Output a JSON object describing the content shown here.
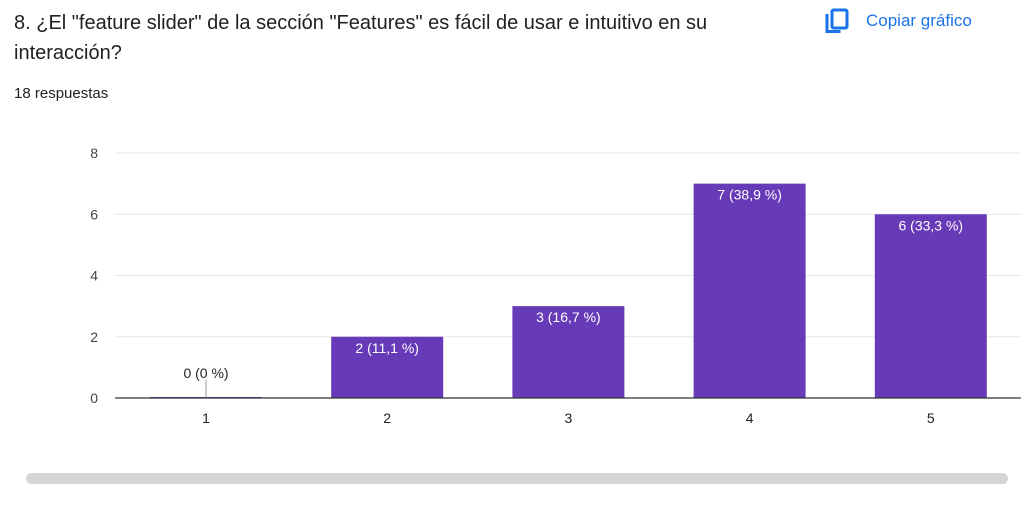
{
  "question": {
    "title": "8. ¿El \"feature slider\" de la sección \"Features\" es fácil de usar e intuitivo en su interacción?",
    "responses": "18 respuestas"
  },
  "toolbar": {
    "copy_label": "Copiar gráfico",
    "copy_icon": "copy-icon"
  },
  "colors": {
    "bar": "#673ab7",
    "accent": "#1a73e8",
    "grid": "#e6e6e6",
    "axis": "#333333"
  },
  "chart_data": {
    "type": "bar",
    "categories": [
      "1",
      "2",
      "3",
      "4",
      "5"
    ],
    "values": [
      0,
      2,
      3,
      7,
      6
    ],
    "data_labels": [
      "0 (0 %)",
      "2 (11,1 %)",
      "3 (16,7 %)",
      "7 (38,9 %)",
      "6 (33,3 %)"
    ],
    "ylim": [
      0,
      8
    ],
    "yticks": [
      0,
      2,
      4,
      6,
      8
    ],
    "grid": true,
    "title": "",
    "xlabel": "",
    "ylabel": ""
  }
}
